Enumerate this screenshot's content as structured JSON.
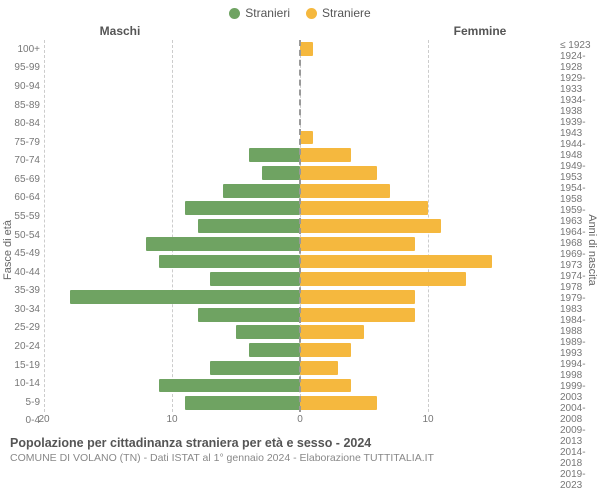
{
  "legend": {
    "male_label": "Stranieri",
    "female_label": "Straniere",
    "male_color": "#6fa362",
    "female_color": "#f5b83e"
  },
  "headers": {
    "left": "Maschi",
    "right": "Femmine"
  },
  "axis_titles": {
    "left": "Fasce di età",
    "right": "Anni di nascita"
  },
  "age_groups": [
    "100+",
    "95-99",
    "90-94",
    "85-89",
    "80-84",
    "75-79",
    "70-74",
    "65-69",
    "60-64",
    "55-59",
    "50-54",
    "45-49",
    "40-44",
    "35-39",
    "30-34",
    "25-29",
    "20-24",
    "15-19",
    "10-14",
    "5-9",
    "0-4"
  ],
  "birth_years": [
    "≤ 1923",
    "1924-1928",
    "1929-1933",
    "1934-1938",
    "1939-1943",
    "1944-1948",
    "1949-1953",
    "1954-1958",
    "1959-1963",
    "1964-1968",
    "1969-1973",
    "1974-1978",
    "1979-1983",
    "1984-1988",
    "1989-1993",
    "1994-1998",
    "1999-2003",
    "2004-2008",
    "2009-2013",
    "2014-2018",
    "2019-2023"
  ],
  "male_values": [
    0,
    0,
    0,
    0,
    0,
    0,
    4,
    3,
    6,
    9,
    8,
    12,
    11,
    7,
    18,
    8,
    5,
    4,
    7,
    11,
    9
  ],
  "female_values": [
    1,
    0,
    0,
    0,
    0,
    1,
    4,
    6,
    7,
    10,
    11,
    9,
    15,
    13,
    9,
    9,
    5,
    4,
    3,
    4,
    6
  ],
  "x_axis": {
    "max": 20,
    "ticks_left": [
      20,
      10,
      0
    ],
    "ticks_right": [
      10
    ]
  },
  "colors": {
    "grid": "#cccccc",
    "center": "#999999",
    "text": "#555555",
    "subtext": "#888888"
  },
  "footer": {
    "title": "Popolazione per cittadinanza straniera per età e sesso - 2024",
    "subtitle": "COMUNE DI VOLANO (TN) - Dati ISTAT al 1° gennaio 2024 - Elaborazione TUTTITALIA.IT"
  }
}
